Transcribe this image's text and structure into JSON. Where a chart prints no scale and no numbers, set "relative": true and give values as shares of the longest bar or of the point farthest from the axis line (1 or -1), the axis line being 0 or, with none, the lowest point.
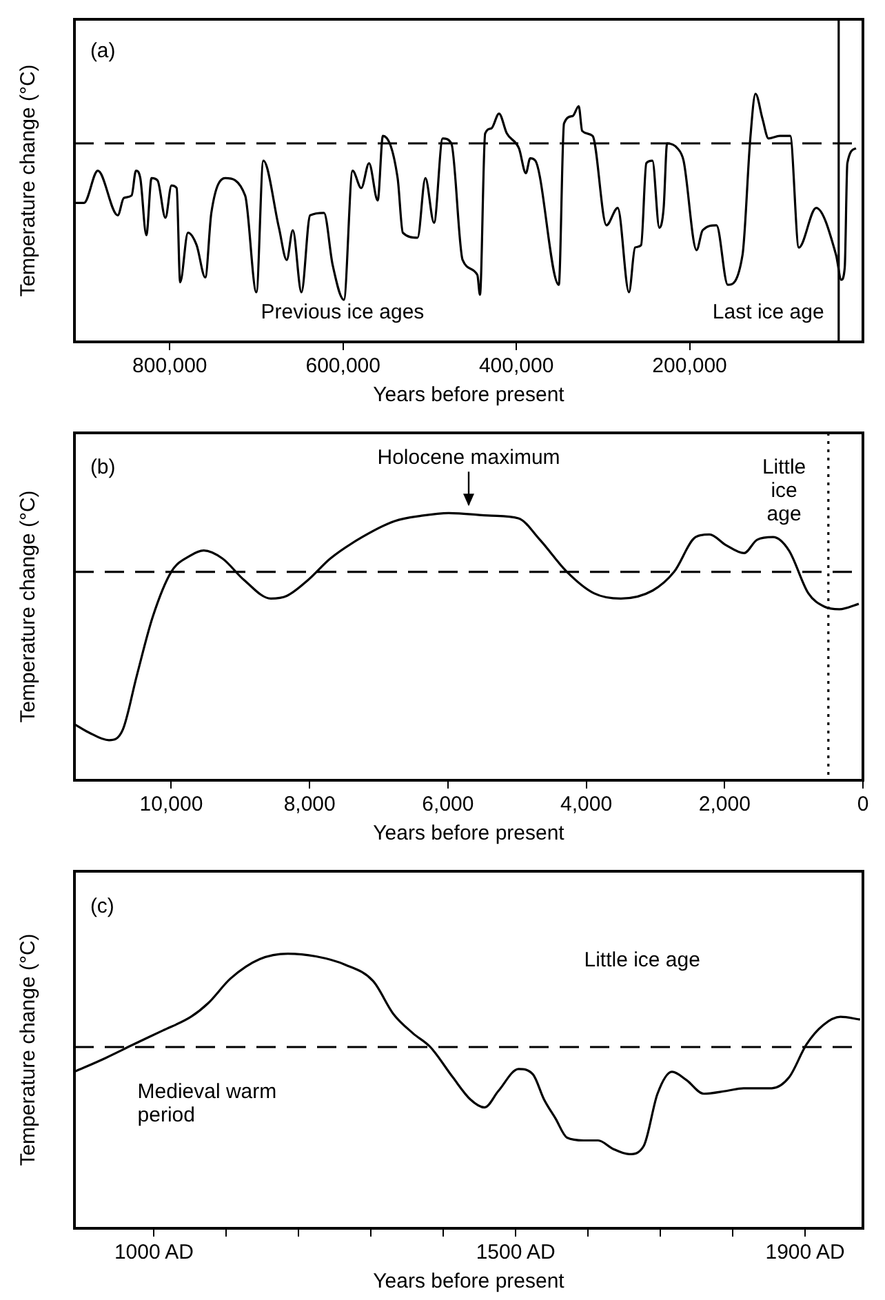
{
  "chart_data": [
    {
      "type": "line",
      "relative": true,
      "xlabel": "Years before present",
      "ylabel": "Temperature change (°C)",
      "xlim": [
        910000,
        0
      ],
      "xticks": [
        {
          "value": 800000,
          "label": "800,000"
        },
        {
          "value": 600000,
          "label": "600,000"
        },
        {
          "value": 400000,
          "label": "400,000"
        },
        {
          "value": 200000,
          "label": "200,000"
        }
      ],
      "grid": false,
      "legend": false,
      "marker": "none",
      "line_style": "solid",
      "series": [
        {
          "color": "#000000",
          "x": [
            909000,
            899000,
            883000,
            860000,
            853000,
            844000,
            839000,
            834000,
            827000,
            821000,
            814000,
            805000,
            798000,
            792000,
            788000,
            779000,
            769000,
            759000,
            752000,
            736000,
            713000,
            700000,
            692000,
            674000,
            665000,
            658000,
            648000,
            638000,
            622000,
            612000,
            599000,
            589000,
            579000,
            570000,
            560000,
            554000,
            537000,
            531000,
            514000,
            505000,
            495000,
            485000,
            475000,
            462000,
            445000,
            442000,
            436000,
            429000,
            420000,
            411000,
            397000,
            389000,
            384000,
            378000,
            351000,
            345000,
            335000,
            328000,
            324000,
            312000,
            296000,
            283000,
            270000,
            263000,
            256000,
            250000,
            243000,
            235000,
            230000,
            226000,
            214000,
            207000,
            192000,
            185000,
            169000,
            156000,
            139000,
            130000,
            124000,
            116000,
            109000,
            96000,
            84000,
            74000,
            54000,
            31000,
            25000,
            21000,
            18000,
            8000
          ],
          "values": [
            0.56,
            0.56,
            0.69,
            0.51,
            0.58,
            0.59,
            0.69,
            0.66,
            0.43,
            0.66,
            0.65,
            0.5,
            0.63,
            0.62,
            0.24,
            0.44,
            0.39,
            0.26,
            0.52,
            0.66,
            0.59,
            0.2,
            0.73,
            0.46,
            0.33,
            0.45,
            0.2,
            0.51,
            0.52,
            0.31,
            0.17,
            0.69,
            0.62,
            0.72,
            0.57,
            0.83,
            0.66,
            0.44,
            0.42,
            0.66,
            0.48,
            0.82,
            0.8,
            0.33,
            0.27,
            0.19,
            0.84,
            0.86,
            0.92,
            0.84,
            0.78,
            0.68,
            0.74,
            0.73,
            0.23,
            0.88,
            0.91,
            0.95,
            0.85,
            0.83,
            0.47,
            0.54,
            0.2,
            0.38,
            0.39,
            0.72,
            0.73,
            0.46,
            0.54,
            0.8,
            0.78,
            0.73,
            0.37,
            0.45,
            0.47,
            0.23,
            0.35,
            0.82,
            1,
            0.9,
            0.82,
            0.83,
            0.83,
            0.38,
            0.54,
            0.35,
            0.25,
            0.3,
            0.72,
            0.78
          ]
        }
      ],
      "ref_lines": [
        {
          "axis": "y",
          "value": 0.8,
          "line_style": "dashed",
          "color": "#000000"
        },
        {
          "axis": "x",
          "value": 28000,
          "line_style": "solid",
          "color": "#000000"
        }
      ],
      "annotations": [
        "(a)",
        "Previous ice ages",
        "Last ice age"
      ]
    },
    {
      "type": "line",
      "relative": true,
      "xlabel": "Years before present",
      "ylabel": "Temperature change (°C)",
      "xlim": [
        11400,
        0
      ],
      "xticks": [
        {
          "value": 10000,
          "label": "10,000"
        },
        {
          "value": 8000,
          "label": "8,000"
        },
        {
          "value": 6000,
          "label": "6,000"
        },
        {
          "value": 4000,
          "label": "4,000"
        },
        {
          "value": 2000,
          "label": "2,000"
        },
        0
      ],
      "grid": false,
      "legend": false,
      "marker": "none",
      "line_style": "solid",
      "series": [
        {
          "color": "#000000",
          "x": [
            11400,
            11200,
            10900,
            10700,
            10500,
            10270,
            10000,
            9730,
            9530,
            9260,
            8950,
            8560,
            8330,
            8020,
            7700,
            7240,
            6770,
            6380,
            5990,
            5370,
            4980,
            4670,
            4280,
            3890,
            3500,
            3040,
            2730,
            2420,
            2220,
            1980,
            1720,
            1530,
            1300,
            1070,
            790,
            560,
            340,
            60
          ],
          "values": [
            0.21,
            0.18,
            0.15,
            0.19,
            0.39,
            0.61,
            0.78,
            0.84,
            0.86,
            0.83,
            0.75,
            0.68,
            0.69,
            0.75,
            0.83,
            0.91,
            0.97,
            0.99,
            1,
            0.99,
            0.98,
            0.9,
            0.78,
            0.7,
            0.68,
            0.71,
            0.78,
            0.91,
            0.92,
            0.88,
            0.85,
            0.9,
            0.91,
            0.86,
            0.7,
            0.65,
            0.64,
            0.66
          ]
        }
      ],
      "ref_lines": [
        {
          "axis": "y",
          "value": 0.78,
          "line_style": "dashed",
          "color": "#000000"
        },
        {
          "axis": "x",
          "value": 500,
          "line_style": "dotted",
          "color": "#000000"
        }
      ],
      "annotations": [
        "(b)",
        {
          "text": "Holocene maximum",
          "x": 5700,
          "y": 1
        },
        "Little ice age"
      ]
    },
    {
      "type": "line",
      "relative": true,
      "xlabel": "Years before present",
      "ylabel": "Temperature change (°C)",
      "xlim": [
        890,
        1980
      ],
      "xticks": [
        {
          "value": 1000,
          "label": "1000 AD"
        },
        {
          "value": 1100,
          "label": null
        },
        {
          "value": 1200,
          "label": null
        },
        {
          "value": 1300,
          "label": null
        },
        {
          "value": 1400,
          "label": null
        },
        {
          "value": 1500,
          "label": "1500 AD"
        },
        {
          "value": 1600,
          "label": null
        },
        {
          "value": 1700,
          "label": null
        },
        {
          "value": 1800,
          "label": null
        },
        {
          "value": 1900,
          "label": "1900 AD"
        }
      ],
      "grid": false,
      "legend": false,
      "marker": "none",
      "line_style": "solid",
      "series": [
        {
          "color": "#000000",
          "x": [
            890,
            933,
            972,
            1012,
            1051,
            1075,
            1106,
            1146,
            1185,
            1224,
            1264,
            1303,
            1331,
            1358,
            1382,
            1413,
            1437,
            1457,
            1476,
            1504,
            1524,
            1539,
            1555,
            1571,
            1594,
            1614,
            1634,
            1657,
            1677,
            1696,
            1716,
            1736,
            1760,
            1791,
            1815,
            1854,
            1878,
            1902,
            1925,
            1949,
            1976
          ],
          "values": [
            0.57,
            0.62,
            0.67,
            0.72,
            0.77,
            0.82,
            0.91,
            0.98,
            1,
            0.99,
            0.96,
            0.9,
            0.78,
            0.71,
            0.66,
            0.55,
            0.47,
            0.44,
            0.5,
            0.58,
            0.56,
            0.47,
            0.4,
            0.33,
            0.32,
            0.32,
            0.29,
            0.27,
            0.3,
            0.49,
            0.57,
            0.54,
            0.49,
            0.5,
            0.51,
            0.51,
            0.55,
            0.67,
            0.74,
            0.77,
            0.76
          ]
        }
      ],
      "ref_lines": [
        {
          "axis": "y",
          "value": 0.66,
          "line_style": "dashed",
          "color": "#000000"
        }
      ],
      "annotations": [
        "(c)",
        "Little ice age",
        "Medieval warm period"
      ]
    }
  ]
}
